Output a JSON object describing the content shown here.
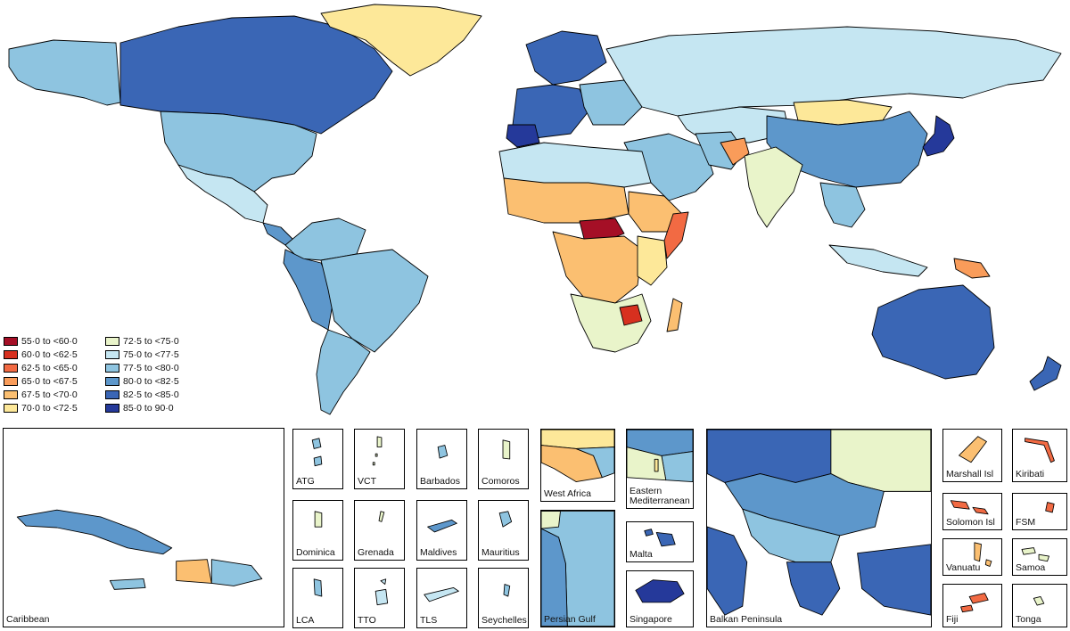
{
  "legend": [
    {
      "label": "55·0 to <60·0",
      "color": "#a50f26"
    },
    {
      "label": "60·0 to <62·5",
      "color": "#d7301f"
    },
    {
      "label": "62·5 to <65·0",
      "color": "#f26a43"
    },
    {
      "label": "65·0 to <67·5",
      "color": "#f99c5a"
    },
    {
      "label": "67·5 to <70·0",
      "color": "#fbbf71"
    },
    {
      "label": "70·0 to <72·5",
      "color": "#fde899"
    },
    {
      "label": "72·5 to <75·0",
      "color": "#e9f4ca"
    },
    {
      "label": "75·0 to <77·5",
      "color": "#c5e6f2"
    },
    {
      "label": "77·5 to <80·0",
      "color": "#8ec4e0"
    },
    {
      "label": "80·0 to <82·5",
      "color": "#5d97cb"
    },
    {
      "label": "82·5 to <85·0",
      "color": "#3a66b5"
    },
    {
      "label": "85·0 to 90·0",
      "color": "#25399a"
    }
  ],
  "insets": {
    "caribbean": "Caribbean",
    "atg": "ATG",
    "vct": "VCT",
    "barbados": "Barbados",
    "comoros": "Comoros",
    "west_africa": "West Africa",
    "eastern_mediterranean": "Eastern\nMediterranean",
    "dominica": "Dominica",
    "grenada": "Grenada",
    "maldives": "Maldives",
    "mauritius": "Mauritius",
    "persian_gulf": "Persian Gulf",
    "malta": "Malta",
    "lca": "LCA",
    "tto": "TTO",
    "tls": "TLS",
    "seychelles": "Seychelles",
    "singapore": "Singapore",
    "balkan": "Balkan Peninsula",
    "marshall": "Marshall Isl",
    "kiribati": "Kiribati",
    "solomon": "Solomon Isl",
    "fsm": "FSM",
    "vanuatu": "Vanuatu",
    "samoa": "Samoa",
    "fiji": "Fiji",
    "tonga": "Tonga"
  }
}
